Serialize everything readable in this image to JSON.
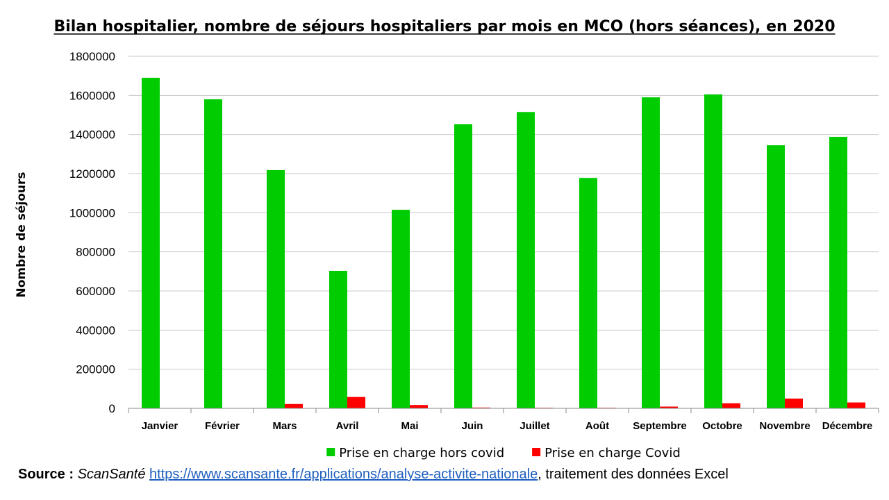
{
  "chart_data": {
    "type": "bar",
    "title": "Bilan hospitalier, nombre de séjours hospitaliers par mois en MCO (hors séances), en 2020",
    "xlabel": "",
    "ylabel": "Nombre de séjours",
    "ylim": [
      0,
      1800000
    ],
    "yticks": [
      "0",
      "200000",
      "400000",
      "600000",
      "800000",
      "1000000",
      "1200000",
      "1400000",
      "1600000",
      "1800000"
    ],
    "grid": true,
    "legend_position": "bottom",
    "categories": [
      "Janvier",
      "Février",
      "Mars",
      "Avril",
      "Mai",
      "Juin",
      "Juillet",
      "Août",
      "Septembre",
      "Octobre",
      "Novembre",
      "Décembre"
    ],
    "series": [
      {
        "name": "Prise en charge hors covid",
        "color": "#00cc00",
        "values": [
          1690000,
          1580000,
          1218000,
          703000,
          1015000,
          1452000,
          1515000,
          1178000,
          1590000,
          1605000,
          1345000,
          1388000
        ]
      },
      {
        "name": "Prise en charge Covid",
        "color": "#ff0000",
        "values": [
          500,
          1000,
          22000,
          58000,
          17000,
          4000,
          3000,
          3000,
          9000,
          26000,
          50000,
          30000
        ]
      }
    ]
  },
  "source": {
    "label": "Source :",
    "site": "ScanSanté",
    "url": "https://www.scansante.fr/applications/analyse-activite-nationale",
    "suffix": ", traitement des données Excel"
  }
}
